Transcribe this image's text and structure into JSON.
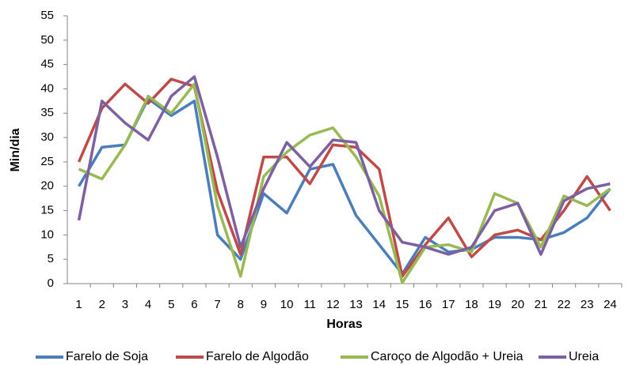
{
  "chart_data": {
    "type": "line",
    "title": null,
    "x_label": "Horas",
    "y_label": "Min/dia",
    "categories": [
      "1",
      "2",
      "3",
      "4",
      "5",
      "6",
      "7",
      "8",
      "9",
      "10",
      "11",
      "12",
      "13",
      "14",
      "15",
      "16",
      "17",
      "18",
      "19",
      "20",
      "21",
      "22",
      "23",
      "24"
    ],
    "ylim": [
      0,
      55
    ],
    "yticks": [
      0,
      5,
      10,
      15,
      20,
      25,
      30,
      35,
      40,
      45,
      50,
      55
    ],
    "grid": false,
    "legend": "bottom",
    "series": [
      {
        "name": "Farelo de Soja",
        "color": "#4a7ebb",
        "values": [
          20,
          28,
          28.5,
          38,
          34.5,
          37.5,
          10,
          5,
          18.5,
          14.5,
          23.5,
          24.5,
          14,
          8,
          2,
          9.5,
          6.5,
          7,
          9.5,
          9.5,
          9,
          10.5,
          13.5,
          19.5
        ]
      },
      {
        "name": "Farelo de Algodão",
        "color": "#be4b48",
        "values": [
          25,
          36,
          41,
          37,
          42,
          40.5,
          19,
          6,
          26,
          26,
          20.5,
          28.5,
          28,
          23.5,
          1.5,
          8,
          13.5,
          5.5,
          10,
          11,
          9,
          15,
          22,
          15
        ]
      },
      {
        "name": "Caroço de Algodão + Ureia",
        "color": "#98b954",
        "values": [
          23.5,
          21.5,
          28.5,
          38.5,
          35,
          41,
          16,
          1.5,
          22,
          27,
          30.5,
          32,
          26,
          18,
          0.2,
          7.5,
          8,
          6.5,
          18.5,
          16.5,
          7.5,
          18,
          16,
          19.5
        ]
      },
      {
        "name": "Ureia",
        "color": "#7d60a0",
        "values": [
          13,
          37.5,
          33,
          29.5,
          38.5,
          42.5,
          26,
          7.5,
          19.5,
          29,
          24,
          29.5,
          29,
          15,
          8.5,
          7.5,
          6,
          7.5,
          15,
          16.5,
          6,
          17,
          19.5,
          20.5
        ]
      }
    ]
  }
}
